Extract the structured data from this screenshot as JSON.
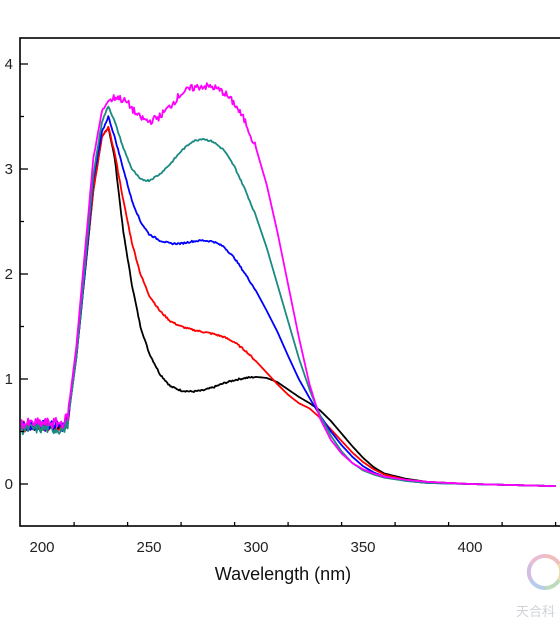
{
  "chart_data": {
    "type": "line",
    "title": "",
    "xlabel": "Wavelength (nm)",
    "ylabel": "",
    "xlim": [
      190,
      440
    ],
    "ylim": [
      -0.45,
      4.2
    ],
    "x_ticks": [
      200,
      250,
      300,
      350,
      400
    ],
    "y_ticks": [
      0,
      1,
      2,
      3,
      4
    ],
    "grid": false,
    "legend": "none",
    "series": [
      {
        "color": "#000000",
        "points": [
          [
            190,
            0.55
          ],
          [
            200,
            0.56
          ],
          [
            210,
            0.55
          ],
          [
            212,
            0.6
          ],
          [
            216,
            1.2
          ],
          [
            220,
            2.0
          ],
          [
            224,
            2.8
          ],
          [
            228,
            3.3
          ],
          [
            231,
            3.4
          ],
          [
            234,
            3.1
          ],
          [
            238,
            2.4
          ],
          [
            242,
            1.9
          ],
          [
            246,
            1.5
          ],
          [
            250,
            1.25
          ],
          [
            255,
            1.05
          ],
          [
            260,
            0.93
          ],
          [
            265,
            0.89
          ],
          [
            270,
            0.88
          ],
          [
            275,
            0.89
          ],
          [
            280,
            0.92
          ],
          [
            285,
            0.96
          ],
          [
            290,
            0.99
          ],
          [
            295,
            1.01
          ],
          [
            300,
            1.02
          ],
          [
            305,
            1.01
          ],
          [
            310,
            0.97
          ],
          [
            315,
            0.9
          ],
          [
            320,
            0.83
          ],
          [
            325,
            0.77
          ],
          [
            330,
            0.7
          ],
          [
            335,
            0.6
          ],
          [
            340,
            0.48
          ],
          [
            345,
            0.36
          ],
          [
            350,
            0.25
          ],
          [
            355,
            0.16
          ],
          [
            360,
            0.1
          ],
          [
            370,
            0.05
          ],
          [
            380,
            0.02
          ],
          [
            400,
            0.0
          ],
          [
            440,
            -0.02
          ]
        ]
      },
      {
        "color": "#ff0000",
        "points": [
          [
            190,
            0.55
          ],
          [
            200,
            0.55
          ],
          [
            210,
            0.55
          ],
          [
            212,
            0.6
          ],
          [
            216,
            1.2
          ],
          [
            220,
            2.0
          ],
          [
            224,
            2.8
          ],
          [
            228,
            3.3
          ],
          [
            231,
            3.4
          ],
          [
            234,
            3.15
          ],
          [
            238,
            2.7
          ],
          [
            242,
            2.3
          ],
          [
            246,
            2.0
          ],
          [
            250,
            1.8
          ],
          [
            255,
            1.65
          ],
          [
            260,
            1.55
          ],
          [
            265,
            1.5
          ],
          [
            270,
            1.47
          ],
          [
            275,
            1.45
          ],
          [
            280,
            1.43
          ],
          [
            285,
            1.4
          ],
          [
            290,
            1.35
          ],
          [
            295,
            1.27
          ],
          [
            300,
            1.17
          ],
          [
            305,
            1.06
          ],
          [
            310,
            0.95
          ],
          [
            315,
            0.85
          ],
          [
            320,
            0.77
          ],
          [
            325,
            0.72
          ],
          [
            330,
            0.63
          ],
          [
            335,
            0.52
          ],
          [
            340,
            0.41
          ],
          [
            345,
            0.3
          ],
          [
            350,
            0.21
          ],
          [
            355,
            0.14
          ],
          [
            360,
            0.09
          ],
          [
            370,
            0.04
          ],
          [
            380,
            0.02
          ],
          [
            400,
            0.0
          ],
          [
            440,
            -0.02
          ]
        ]
      },
      {
        "color": "#0000ff",
        "points": [
          [
            190,
            0.56
          ],
          [
            200,
            0.56
          ],
          [
            210,
            0.55
          ],
          [
            212,
            0.6
          ],
          [
            216,
            1.2
          ],
          [
            220,
            2.0
          ],
          [
            224,
            2.9
          ],
          [
            228,
            3.35
          ],
          [
            231,
            3.5
          ],
          [
            234,
            3.3
          ],
          [
            238,
            3.0
          ],
          [
            242,
            2.7
          ],
          [
            246,
            2.5
          ],
          [
            250,
            2.38
          ],
          [
            255,
            2.32
          ],
          [
            260,
            2.29
          ],
          [
            265,
            2.29
          ],
          [
            270,
            2.31
          ],
          [
            275,
            2.32
          ],
          [
            280,
            2.31
          ],
          [
            285,
            2.26
          ],
          [
            290,
            2.15
          ],
          [
            295,
            2.0
          ],
          [
            300,
            1.84
          ],
          [
            305,
            1.65
          ],
          [
            310,
            1.45
          ],
          [
            315,
            1.22
          ],
          [
            320,
            1.0
          ],
          [
            325,
            0.82
          ],
          [
            330,
            0.65
          ],
          [
            335,
            0.5
          ],
          [
            340,
            0.37
          ],
          [
            345,
            0.26
          ],
          [
            350,
            0.17
          ],
          [
            355,
            0.11
          ],
          [
            360,
            0.07
          ],
          [
            370,
            0.03
          ],
          [
            380,
            0.01
          ],
          [
            400,
            0.0
          ],
          [
            440,
            -0.02
          ]
        ]
      },
      {
        "color": "#1a8a82",
        "points": [
          [
            190,
            0.52
          ],
          [
            200,
            0.53
          ],
          [
            210,
            0.52
          ],
          [
            212,
            0.58
          ],
          [
            216,
            1.2
          ],
          [
            220,
            2.05
          ],
          [
            224,
            2.95
          ],
          [
            228,
            3.45
          ],
          [
            231,
            3.6
          ],
          [
            234,
            3.45
          ],
          [
            238,
            3.2
          ],
          [
            242,
            3.0
          ],
          [
            246,
            2.9
          ],
          [
            250,
            2.89
          ],
          [
            255,
            2.95
          ],
          [
            260,
            3.05
          ],
          [
            265,
            3.17
          ],
          [
            270,
            3.26
          ],
          [
            275,
            3.29
          ],
          [
            280,
            3.26
          ],
          [
            285,
            3.18
          ],
          [
            290,
            3.02
          ],
          [
            295,
            2.8
          ],
          [
            300,
            2.55
          ],
          [
            305,
            2.25
          ],
          [
            310,
            1.9
          ],
          [
            315,
            1.55
          ],
          [
            320,
            1.2
          ],
          [
            325,
            0.9
          ],
          [
            330,
            0.65
          ],
          [
            335,
            0.46
          ],
          [
            340,
            0.31
          ],
          [
            345,
            0.2
          ],
          [
            350,
            0.13
          ],
          [
            355,
            0.09
          ],
          [
            360,
            0.06
          ],
          [
            370,
            0.03
          ],
          [
            380,
            0.01
          ],
          [
            400,
            0.0
          ],
          [
            440,
            -0.02
          ]
        ]
      },
      {
        "color": "#ff00ff",
        "points": [
          [
            190,
            0.57
          ],
          [
            200,
            0.58
          ],
          [
            210,
            0.58
          ],
          [
            212,
            0.65
          ],
          [
            216,
            1.3
          ],
          [
            220,
            2.2
          ],
          [
            224,
            3.1
          ],
          [
            228,
            3.55
          ],
          [
            231,
            3.65
          ],
          [
            235,
            3.69
          ],
          [
            240,
            3.63
          ],
          [
            245,
            3.5
          ],
          [
            250,
            3.45
          ],
          [
            255,
            3.5
          ],
          [
            260,
            3.6
          ],
          [
            265,
            3.72
          ],
          [
            270,
            3.77
          ],
          [
            275,
            3.79
          ],
          [
            280,
            3.78
          ],
          [
            285,
            3.73
          ],
          [
            290,
            3.62
          ],
          [
            295,
            3.45
          ],
          [
            300,
            3.2
          ],
          [
            305,
            2.85
          ],
          [
            310,
            2.4
          ],
          [
            315,
            1.9
          ],
          [
            320,
            1.4
          ],
          [
            325,
            0.95
          ],
          [
            330,
            0.62
          ],
          [
            335,
            0.42
          ],
          [
            340,
            0.29
          ],
          [
            345,
            0.2
          ],
          [
            350,
            0.14
          ],
          [
            355,
            0.1
          ],
          [
            360,
            0.07
          ],
          [
            370,
            0.04
          ],
          [
            380,
            0.02
          ],
          [
            400,
            0.0
          ],
          [
            440,
            -0.02
          ]
        ]
      }
    ]
  },
  "watermark": {
    "text": "天合科",
    "icon": "swirl-logo-icon"
  }
}
